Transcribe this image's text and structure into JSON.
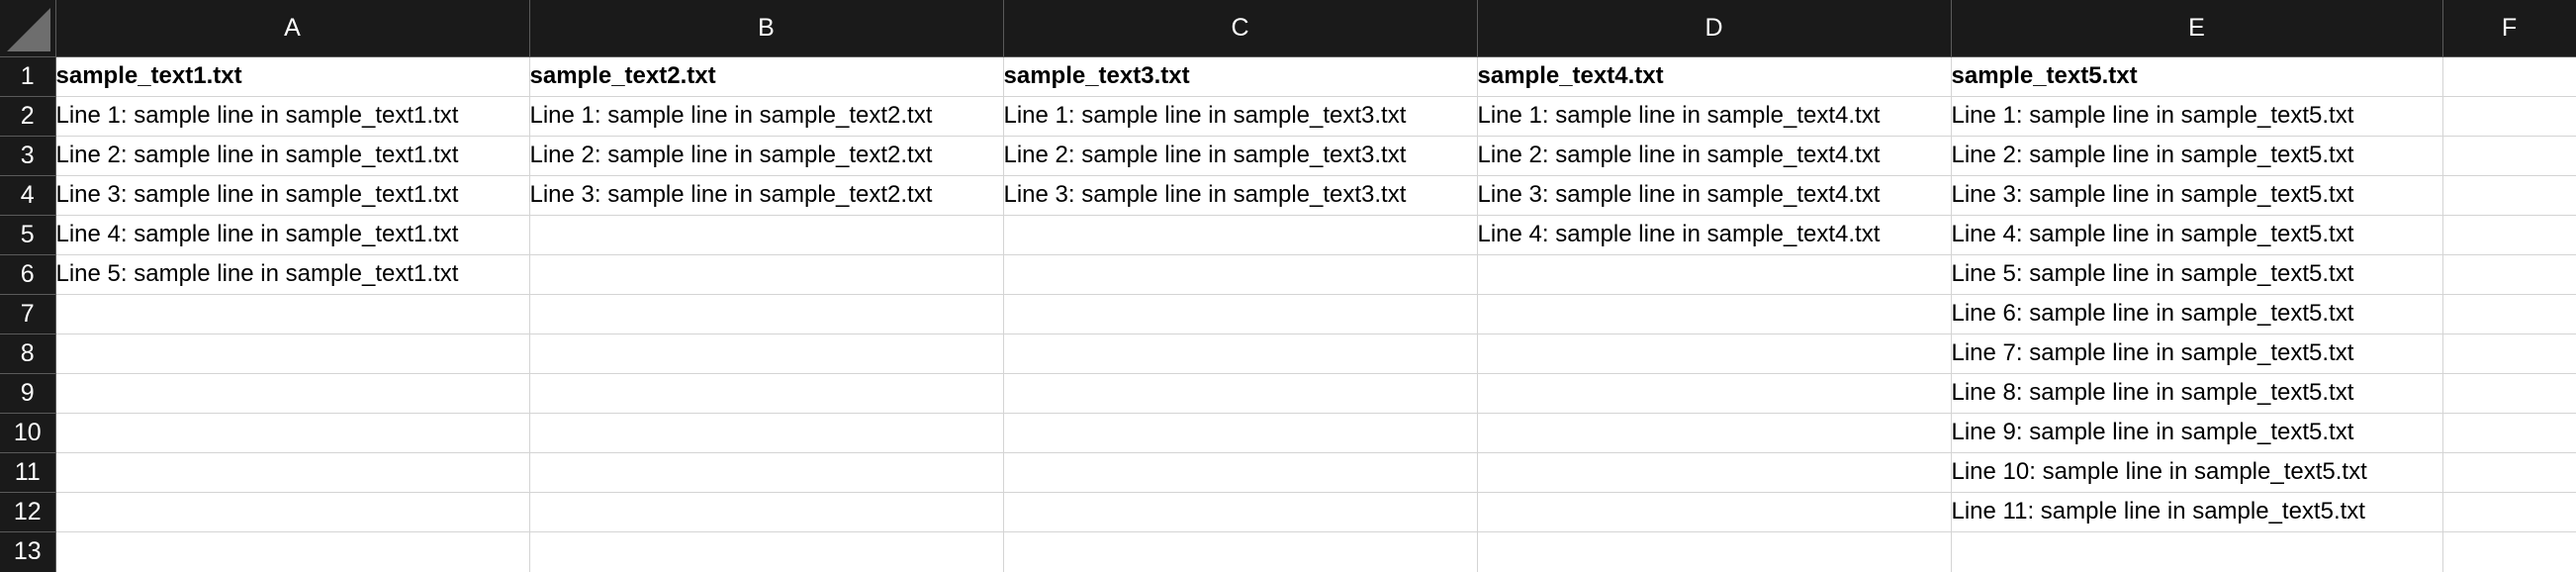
{
  "sheet": {
    "columns": [
      "A",
      "B",
      "C",
      "D",
      "E",
      "F"
    ],
    "rows": [
      {
        "num": "1",
        "cells": [
          "sample_text1.txt",
          "sample_text2.txt",
          "sample_text3.txt",
          "sample_text4.txt",
          "sample_text5.txt",
          ""
        ]
      },
      {
        "num": "2",
        "cells": [
          "Line 1: sample line in sample_text1.txt",
          "Line 1: sample line in sample_text2.txt",
          "Line 1: sample line in sample_text3.txt",
          "Line 1: sample line in sample_text4.txt",
          "Line 1: sample line in sample_text5.txt",
          ""
        ]
      },
      {
        "num": "3",
        "cells": [
          "Line 2: sample line in sample_text1.txt",
          "Line 2: sample line in sample_text2.txt",
          "Line 2: sample line in sample_text3.txt",
          "Line 2: sample line in sample_text4.txt",
          "Line 2: sample line in sample_text5.txt",
          ""
        ]
      },
      {
        "num": "4",
        "cells": [
          "Line 3: sample line in sample_text1.txt",
          "Line 3: sample line in sample_text2.txt",
          "Line 3: sample line in sample_text3.txt",
          "Line 3: sample line in sample_text4.txt",
          "Line 3: sample line in sample_text5.txt",
          ""
        ]
      },
      {
        "num": "5",
        "cells": [
          "Line 4: sample line in sample_text1.txt",
          "",
          "",
          "Line 4: sample line in sample_text4.txt",
          "Line 4: sample line in sample_text5.txt",
          ""
        ]
      },
      {
        "num": "6",
        "cells": [
          "Line 5: sample line in sample_text1.txt",
          "",
          "",
          "",
          "Line 5: sample line in sample_text5.txt",
          ""
        ]
      },
      {
        "num": "7",
        "cells": [
          "",
          "",
          "",
          "",
          "Line 6: sample line in sample_text5.txt",
          ""
        ]
      },
      {
        "num": "8",
        "cells": [
          "",
          "",
          "",
          "",
          "Line 7: sample line in sample_text5.txt",
          ""
        ]
      },
      {
        "num": "9",
        "cells": [
          "",
          "",
          "",
          "",
          "Line 8: sample line in sample_text5.txt",
          ""
        ]
      },
      {
        "num": "10",
        "cells": [
          "",
          "",
          "",
          "",
          "Line 9: sample line in sample_text5.txt",
          ""
        ]
      },
      {
        "num": "11",
        "cells": [
          "",
          "",
          "",
          "",
          "Line 10: sample line in sample_text5.txt",
          ""
        ]
      },
      {
        "num": "12",
        "cells": [
          "",
          "",
          "",
          "",
          "Line 11: sample line in sample_text5.txt",
          ""
        ]
      },
      {
        "num": "13",
        "cells": [
          "",
          "",
          "",
          "",
          "",
          ""
        ]
      }
    ]
  },
  "colors": {
    "header_bg": "#1a1a1a",
    "header_text": "#ffffff",
    "gridline": "#d4d4d4",
    "cell_bg": "#ffffff"
  },
  "icons": {
    "corner": "select-all-triangle-icon"
  }
}
